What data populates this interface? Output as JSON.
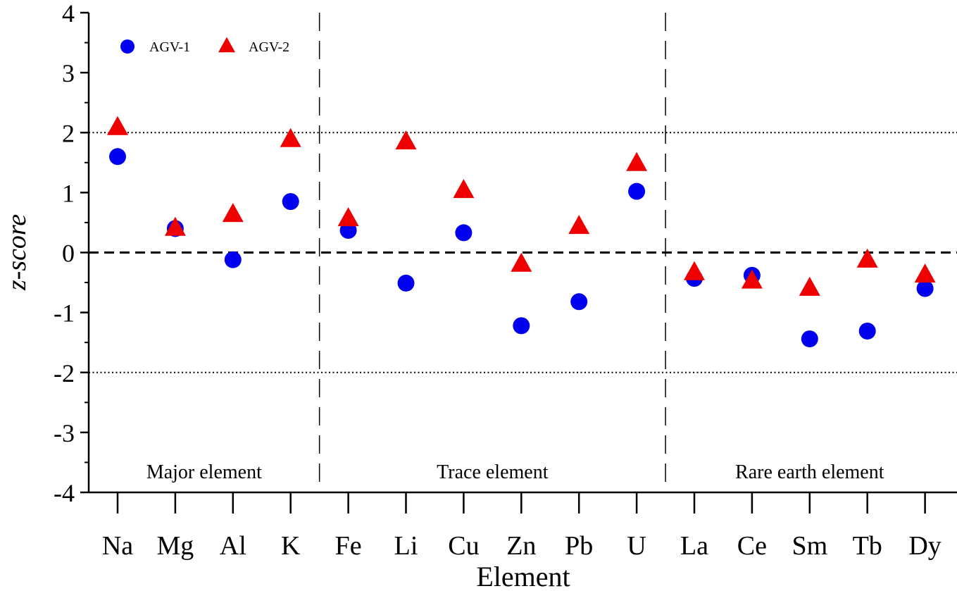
{
  "chart_data": {
    "type": "scatter",
    "xlabel": "Element",
    "ylabel": "z-score",
    "ylim": [
      -4,
      4
    ],
    "yticks": [
      "-4",
      "-3",
      "-2",
      "-1",
      "0",
      "1",
      "2",
      "3",
      "4"
    ],
    "categories": [
      "Na",
      "Mg",
      "Al",
      "K",
      "Fe",
      "Li",
      "Cu",
      "Zn",
      "Pb",
      "U",
      "La",
      "Ce",
      "Sm",
      "Tb",
      "Dy"
    ],
    "groups": [
      {
        "label": "Major element",
        "start": 0,
        "end": 3
      },
      {
        "label": "Trace element",
        "start": 4,
        "end": 9
      },
      {
        "label": "Rare earth element",
        "start": 10,
        "end": 14
      }
    ],
    "reference_lines": [
      {
        "y": 0,
        "style": "dashed"
      },
      {
        "y": 2,
        "style": "dotted"
      },
      {
        "y": -2,
        "style": "dotted"
      }
    ],
    "series": [
      {
        "name": "AGV-1",
        "marker": "circle",
        "color": "#0000ee",
        "values": [
          1.6,
          0.4,
          -0.12,
          0.85,
          0.37,
          -0.51,
          0.33,
          -1.22,
          -0.82,
          1.02,
          -0.43,
          -0.38,
          -1.44,
          -1.31,
          -0.6
        ]
      },
      {
        "name": "AGV-2",
        "marker": "triangle",
        "color": "#ee0000",
        "values": [
          2.08,
          0.4,
          0.63,
          1.88,
          0.56,
          1.84,
          1.03,
          -0.2,
          0.43,
          1.48,
          -0.34,
          -0.48,
          -0.6,
          -0.13,
          -0.38
        ]
      }
    ]
  }
}
